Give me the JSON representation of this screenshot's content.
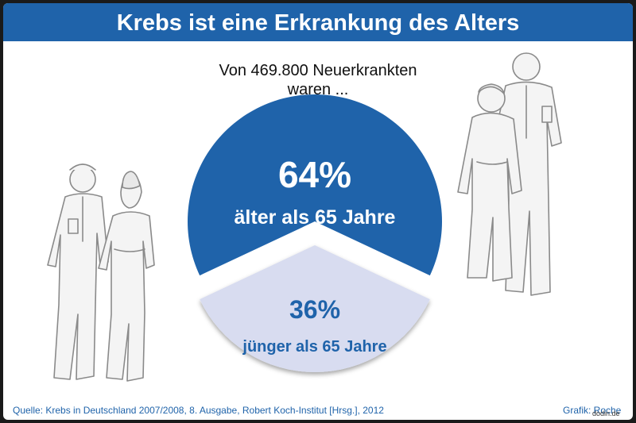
{
  "title": "Krebs ist eine Erkrankung des Alters",
  "subtitle": {
    "line1": "Von 469.800 Neuerkrankten",
    "line2": "waren ..."
  },
  "chart_data": {
    "type": "pie",
    "title": "Krebs ist eine Erkrankung des Alters",
    "total": 469800,
    "slices": [
      {
        "label": "älter als 65 Jahre",
        "value": 64,
        "value_label": "64%",
        "color": "#1f63aa",
        "text_color": "#ffffff"
      },
      {
        "label": "jünger als 65 Jahre",
        "value": 36,
        "value_label": "36%",
        "color": "#d8dcf0",
        "text_color": "#1f63aa"
      }
    ]
  },
  "source": "Quelle: Krebs in Deutschland 2007/2008, 8. Ausgabe, Robert Koch-Institut [Hrsg.], 2012",
  "credit": "Grafik: Roche",
  "watermark": "dodin.de",
  "illustrations": [
    "young-couple-illustration",
    "elderly-couple-illustration"
  ]
}
